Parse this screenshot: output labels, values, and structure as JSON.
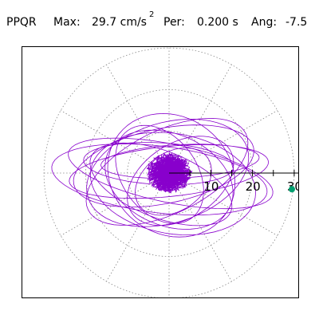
{
  "header": {
    "station": "PPQR",
    "max_label": "Max:",
    "max_value": "29.7 cm/s",
    "max_exp": "2",
    "period_label": "Per:",
    "period_value": "0.200 s",
    "angle_label": "Ang:",
    "angle_value": "-7.5"
  },
  "chart_data": {
    "type": "polar",
    "title": "",
    "radial_ticks": [
      "10",
      "20",
      "30"
    ],
    "radial_max": 30,
    "angle_spokes_deg": [
      0,
      30,
      60,
      90,
      120,
      150,
      180,
      210,
      240,
      270,
      300,
      330
    ],
    "grid": true,
    "max_value": 29.7,
    "max_angle_deg": -7.5,
    "trace_color": "#8800cc",
    "marker_color": "#00a070",
    "grid_color": "#888888",
    "axis_color": "#000000"
  }
}
